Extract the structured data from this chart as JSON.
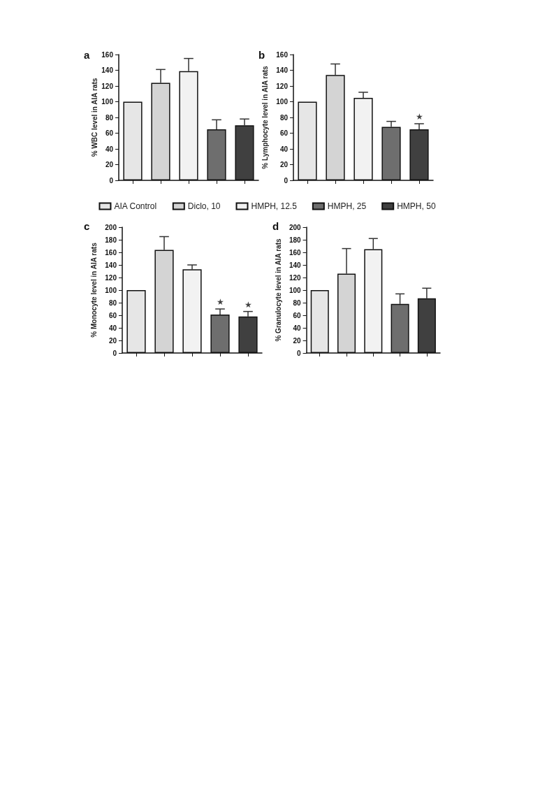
{
  "chart_data": [
    {
      "type": "bar",
      "title": "a",
      "ylabel": "% WBC level in AIA rats",
      "categories": [
        null,
        null,
        null,
        null,
        null
      ],
      "ylim": [
        0,
        160
      ],
      "yticks": [
        0,
        20,
        40,
        60,
        80,
        100,
        120,
        140,
        160
      ],
      "legend": "bottom",
      "series": [
        {
          "name": "AIA Control",
          "color": "#e6e6e6",
          "values": [
            100,
            null,
            null,
            null,
            null
          ]
        },
        {
          "name": "Diclo, 10",
          "color": "#d4d4d4",
          "values": [
            null,
            124,
            null,
            null,
            null
          ],
          "errors": [
            null,
            [
              124,
              141
            ],
            null,
            null,
            null
          ]
        },
        {
          "name": "HMPH, 12.5",
          "color": "#f2f2f2",
          "values": [
            null,
            null,
            139,
            null,
            null
          ],
          "errors": [
            null,
            null,
            [
              139,
              155
            ],
            null,
            null
          ]
        },
        {
          "name": "HMPH, 25",
          "color": "#6e6e6e",
          "values": [
            null,
            null,
            null,
            65,
            null
          ],
          "errors": [
            null,
            null,
            null,
            [
              65,
              77
            ],
            null
          ]
        },
        {
          "name": "HMPH, 50",
          "color": "#404040",
          "values": [
            null,
            null,
            null,
            null,
            70
          ],
          "errors": [
            null,
            null,
            null,
            null,
            [
              70,
              78
            ]
          ]
        }
      ]
    },
    {
      "type": "bar",
      "title": "b",
      "ylabel": "% Lymphocyte level in AIA rats",
      "categories": [
        null,
        null,
        null,
        null,
        null
      ],
      "ylim": [
        0,
        160
      ],
      "yticks": [
        0,
        20,
        40,
        60,
        80,
        100,
        120,
        140,
        160
      ],
      "series": [
        {
          "color": "#e6e6e6",
          "values": [
            100,
            null,
            null,
            null,
            null
          ]
        },
        {
          "color": "#d4d4d4",
          "values": [
            null,
            134,
            null,
            null,
            null
          ],
          "errors": [
            null,
            [
              134,
              148
            ],
            null,
            null,
            null
          ]
        },
        {
          "color": "#f2f2f2",
          "values": [
            null,
            null,
            105,
            null,
            null
          ],
          "errors": [
            null,
            null,
            [
              105,
              112
            ],
            null,
            null
          ]
        },
        {
          "color": "#6e6e6e",
          "values": [
            null,
            null,
            null,
            68,
            null
          ],
          "errors": [
            null,
            null,
            null,
            [
              68,
              75
            ],
            null
          ]
        },
        {
          "color": "#404040",
          "values": [
            null,
            null,
            null,
            null,
            65
          ],
          "errors": [
            null,
            null,
            null,
            null,
            [
              65,
              72
            ]
          ],
          "value_labels": [
            null,
            null,
            null,
            null,
            "★"
          ]
        }
      ]
    },
    {
      "type": "bar",
      "title": "c",
      "ylabel": "% Monocyte level in AIA rats",
      "categories": [
        null,
        null,
        null,
        null,
        null
      ],
      "ylim": [
        0,
        200
      ],
      "yticks": [
        0,
        20,
        40,
        60,
        80,
        100,
        120,
        140,
        160,
        180,
        200
      ],
      "series": [
        {
          "color": "#e6e6e6",
          "values": [
            100,
            null,
            null,
            null,
            null
          ]
        },
        {
          "color": "#d4d4d4",
          "values": [
            null,
            164,
            null,
            null,
            null
          ],
          "errors": [
            null,
            [
              164,
              185
            ],
            null,
            null,
            null
          ]
        },
        {
          "color": "#f2f2f2",
          "values": [
            null,
            null,
            133,
            null,
            null
          ],
          "errors": [
            null,
            null,
            [
              133,
              140
            ],
            null,
            null
          ]
        },
        {
          "color": "#6e6e6e",
          "values": [
            null,
            null,
            null,
            61,
            null
          ],
          "errors": [
            null,
            null,
            null,
            [
              61,
              70
            ],
            null
          ],
          "value_labels": [
            null,
            null,
            null,
            "★",
            null
          ]
        },
        {
          "color": "#404040",
          "values": [
            null,
            null,
            null,
            null,
            58
          ],
          "errors": [
            null,
            null,
            null,
            null,
            [
              58,
              66
            ]
          ],
          "value_labels": [
            null,
            null,
            null,
            null,
            "★"
          ]
        }
      ]
    },
    {
      "type": "bar",
      "title": "d",
      "ylabel": "% Granulocyte level in AIA rats",
      "categories": [
        null,
        null,
        null,
        null,
        null
      ],
      "ylim": [
        0,
        200
      ],
      "yticks": [
        0,
        20,
        40,
        60,
        80,
        100,
        120,
        140,
        160,
        180,
        200
      ],
      "series": [
        {
          "color": "#e6e6e6",
          "values": [
            100,
            null,
            null,
            null,
            null
          ]
        },
        {
          "color": "#d4d4d4",
          "values": [
            null,
            126,
            null,
            null,
            null
          ],
          "errors": [
            null,
            [
              126,
              166
            ],
            null,
            null,
            null
          ]
        },
        {
          "color": "#f2f2f2",
          "values": [
            null,
            null,
            165,
            null,
            null
          ],
          "errors": [
            null,
            null,
            [
              165,
              182
            ],
            null,
            null
          ]
        },
        {
          "color": "#6e6e6e",
          "values": [
            null,
            null,
            null,
            78,
            null
          ],
          "errors": [
            null,
            null,
            null,
            [
              78,
              94
            ],
            null
          ]
        },
        {
          "color": "#404040",
          "values": [
            null,
            null,
            null,
            null,
            87
          ],
          "errors": [
            null,
            null,
            null,
            null,
            [
              87,
              103
            ]
          ]
        }
      ]
    }
  ]
}
